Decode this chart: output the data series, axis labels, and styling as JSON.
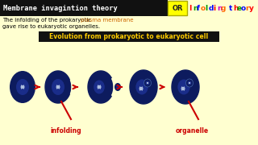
{
  "bg_color": "#ffffd0",
  "header_bg": "#111111",
  "header_text": "Membrane invagintion theory",
  "header_text_color": "#ffffff",
  "or_bg": "#ffff00",
  "or_text": "OR",
  "or_text_color": "#222222",
  "infolding_str": "Infolding theory",
  "infolding_letter_colors": [
    "#ff0000",
    "#009900",
    "#0000ff",
    "#ff6600",
    "#009900",
    "#0000ff",
    "#ff0000",
    "#cc00cc",
    "#ff6600",
    "#ffffff",
    "#0000ff",
    "#ff0000",
    "#009900",
    "#0000ff",
    "#ff6600",
    "#ff0000"
  ],
  "desc_before_plasma": "The infolding of the prokaryotic ",
  "desc_plasma": "plasma membrane",
  "desc_plasma_color": "#cc6600",
  "desc_line2": "gave rise to eukaryotic organelles.",
  "desc_color": "#000000",
  "subtitle": "Evolution from prokaryotic to eukaryotic cell",
  "subtitle_color": "#ffcc00",
  "subtitle_bg": "#111111",
  "cell_color": "#0d1b5e",
  "cell_inner_color": "#1a2d8a",
  "arrow_color": "#cc0000",
  "label_infolding": "infolding",
  "label_organelle": "organelle",
  "label_color": "#cc0000"
}
